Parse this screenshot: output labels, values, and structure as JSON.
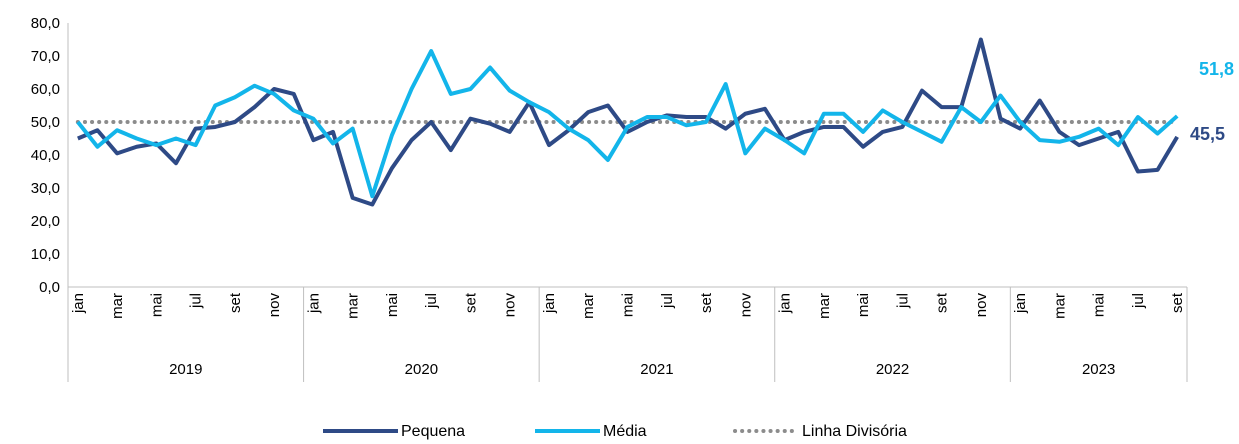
{
  "chart_data": {
    "type": "line",
    "categories": [
      "jan",
      null,
      "mar",
      null,
      "mai",
      null,
      "jul",
      null,
      "set",
      null,
      "nov",
      null,
      "jan",
      null,
      "mar",
      null,
      "mai",
      null,
      "jul",
      null,
      "set",
      null,
      "nov",
      null,
      "jan",
      null,
      "mar",
      null,
      "mai",
      null,
      "jul",
      null,
      "set",
      null,
      "nov",
      null,
      "jan",
      null,
      "mar",
      null,
      "mai",
      null,
      "jul",
      null,
      "set",
      null,
      "nov",
      null,
      "jan",
      null,
      "mar",
      null,
      "mai",
      null,
      "jul",
      null,
      "set"
    ],
    "groups": [
      {
        "label": "2019",
        "count": 12
      },
      {
        "label": "2020",
        "count": 12
      },
      {
        "label": "2021",
        "count": 12
      },
      {
        "label": "2022",
        "count": 12
      },
      {
        "label": "2023",
        "count": 9
      }
    ],
    "series": [
      {
        "name": "Pequena",
        "color": "#2e4a86",
        "values": [
          45,
          47.5,
          40.5,
          42.5,
          43.5,
          37.5,
          48,
          48.5,
          50,
          54.5,
          60,
          58.5,
          44.5,
          47,
          27,
          25,
          36,
          44.5,
          50,
          41.5,
          51,
          49.5,
          47,
          56,
          43,
          47.5,
          53,
          55,
          47,
          50,
          52,
          51.5,
          51.5,
          48,
          52.5,
          54,
          44.5,
          47,
          48.5,
          48.5,
          42.5,
          47,
          48.5,
          59.5,
          54.5,
          54.5,
          75,
          51,
          48,
          56.5,
          47,
          43,
          45,
          47,
          35,
          35.5,
          45.5
        ],
        "end_label": "45,5"
      },
      {
        "name": "Média",
        "color": "#13b5ea",
        "values": [
          50,
          42.5,
          47.5,
          45,
          43,
          45,
          43,
          55,
          57.5,
          61,
          58.5,
          53.5,
          51,
          43.5,
          48,
          27.5,
          46,
          60,
          71.5,
          58.5,
          60,
          66.5,
          59.5,
          56,
          53,
          48,
          44.5,
          38.5,
          48.5,
          51.5,
          51.5,
          49,
          50,
          61.5,
          40.5,
          48,
          44.5,
          40.5,
          52.5,
          52.5,
          47,
          53.5,
          50,
          47,
          44,
          54.5,
          50,
          58,
          50,
          44.5,
          44,
          45.5,
          48,
          43,
          51.5,
          46.5,
          51.8
        ],
        "end_label": "51,8"
      }
    ],
    "reference_line": {
      "name": "Linha Divisória",
      "value": 50,
      "color": "#8c8c8c"
    },
    "ylim": [
      0,
      80
    ],
    "yticks": [
      {
        "value": 0,
        "label": "0,0"
      },
      {
        "value": 10,
        "label": "10,0"
      },
      {
        "value": 20,
        "label": "20,0"
      },
      {
        "value": 30,
        "label": "30,0"
      },
      {
        "value": 40,
        "label": "40,0"
      },
      {
        "value": 50,
        "label": "50,0"
      },
      {
        "value": 60,
        "label": "60,0"
      },
      {
        "value": 70,
        "label": "70,0"
      },
      {
        "value": 80,
        "label": "80,0"
      }
    ],
    "legend": "bottom"
  }
}
